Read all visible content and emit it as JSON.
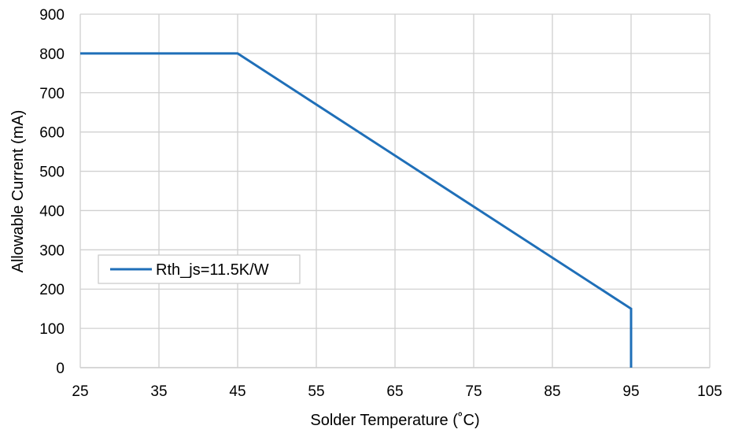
{
  "chart_data": {
    "type": "line",
    "title": "",
    "xlabel": "Solder Temperature (˚C)",
    "ylabel": "Allowable Current (mA)",
    "xlim": [
      25,
      105
    ],
    "ylim": [
      0,
      900
    ],
    "xticks": [
      25,
      35,
      45,
      55,
      65,
      75,
      85,
      95,
      105
    ],
    "yticks": [
      0,
      100,
      200,
      300,
      400,
      500,
      600,
      700,
      800,
      900
    ],
    "grid": true,
    "legend_position": "left",
    "series": [
      {
        "name": "Rth_js=11.5K/W",
        "color": "#1f6fb8",
        "x": [
          25,
          45,
          95,
          95
        ],
        "y": [
          800,
          800,
          150,
          0
        ]
      }
    ]
  }
}
